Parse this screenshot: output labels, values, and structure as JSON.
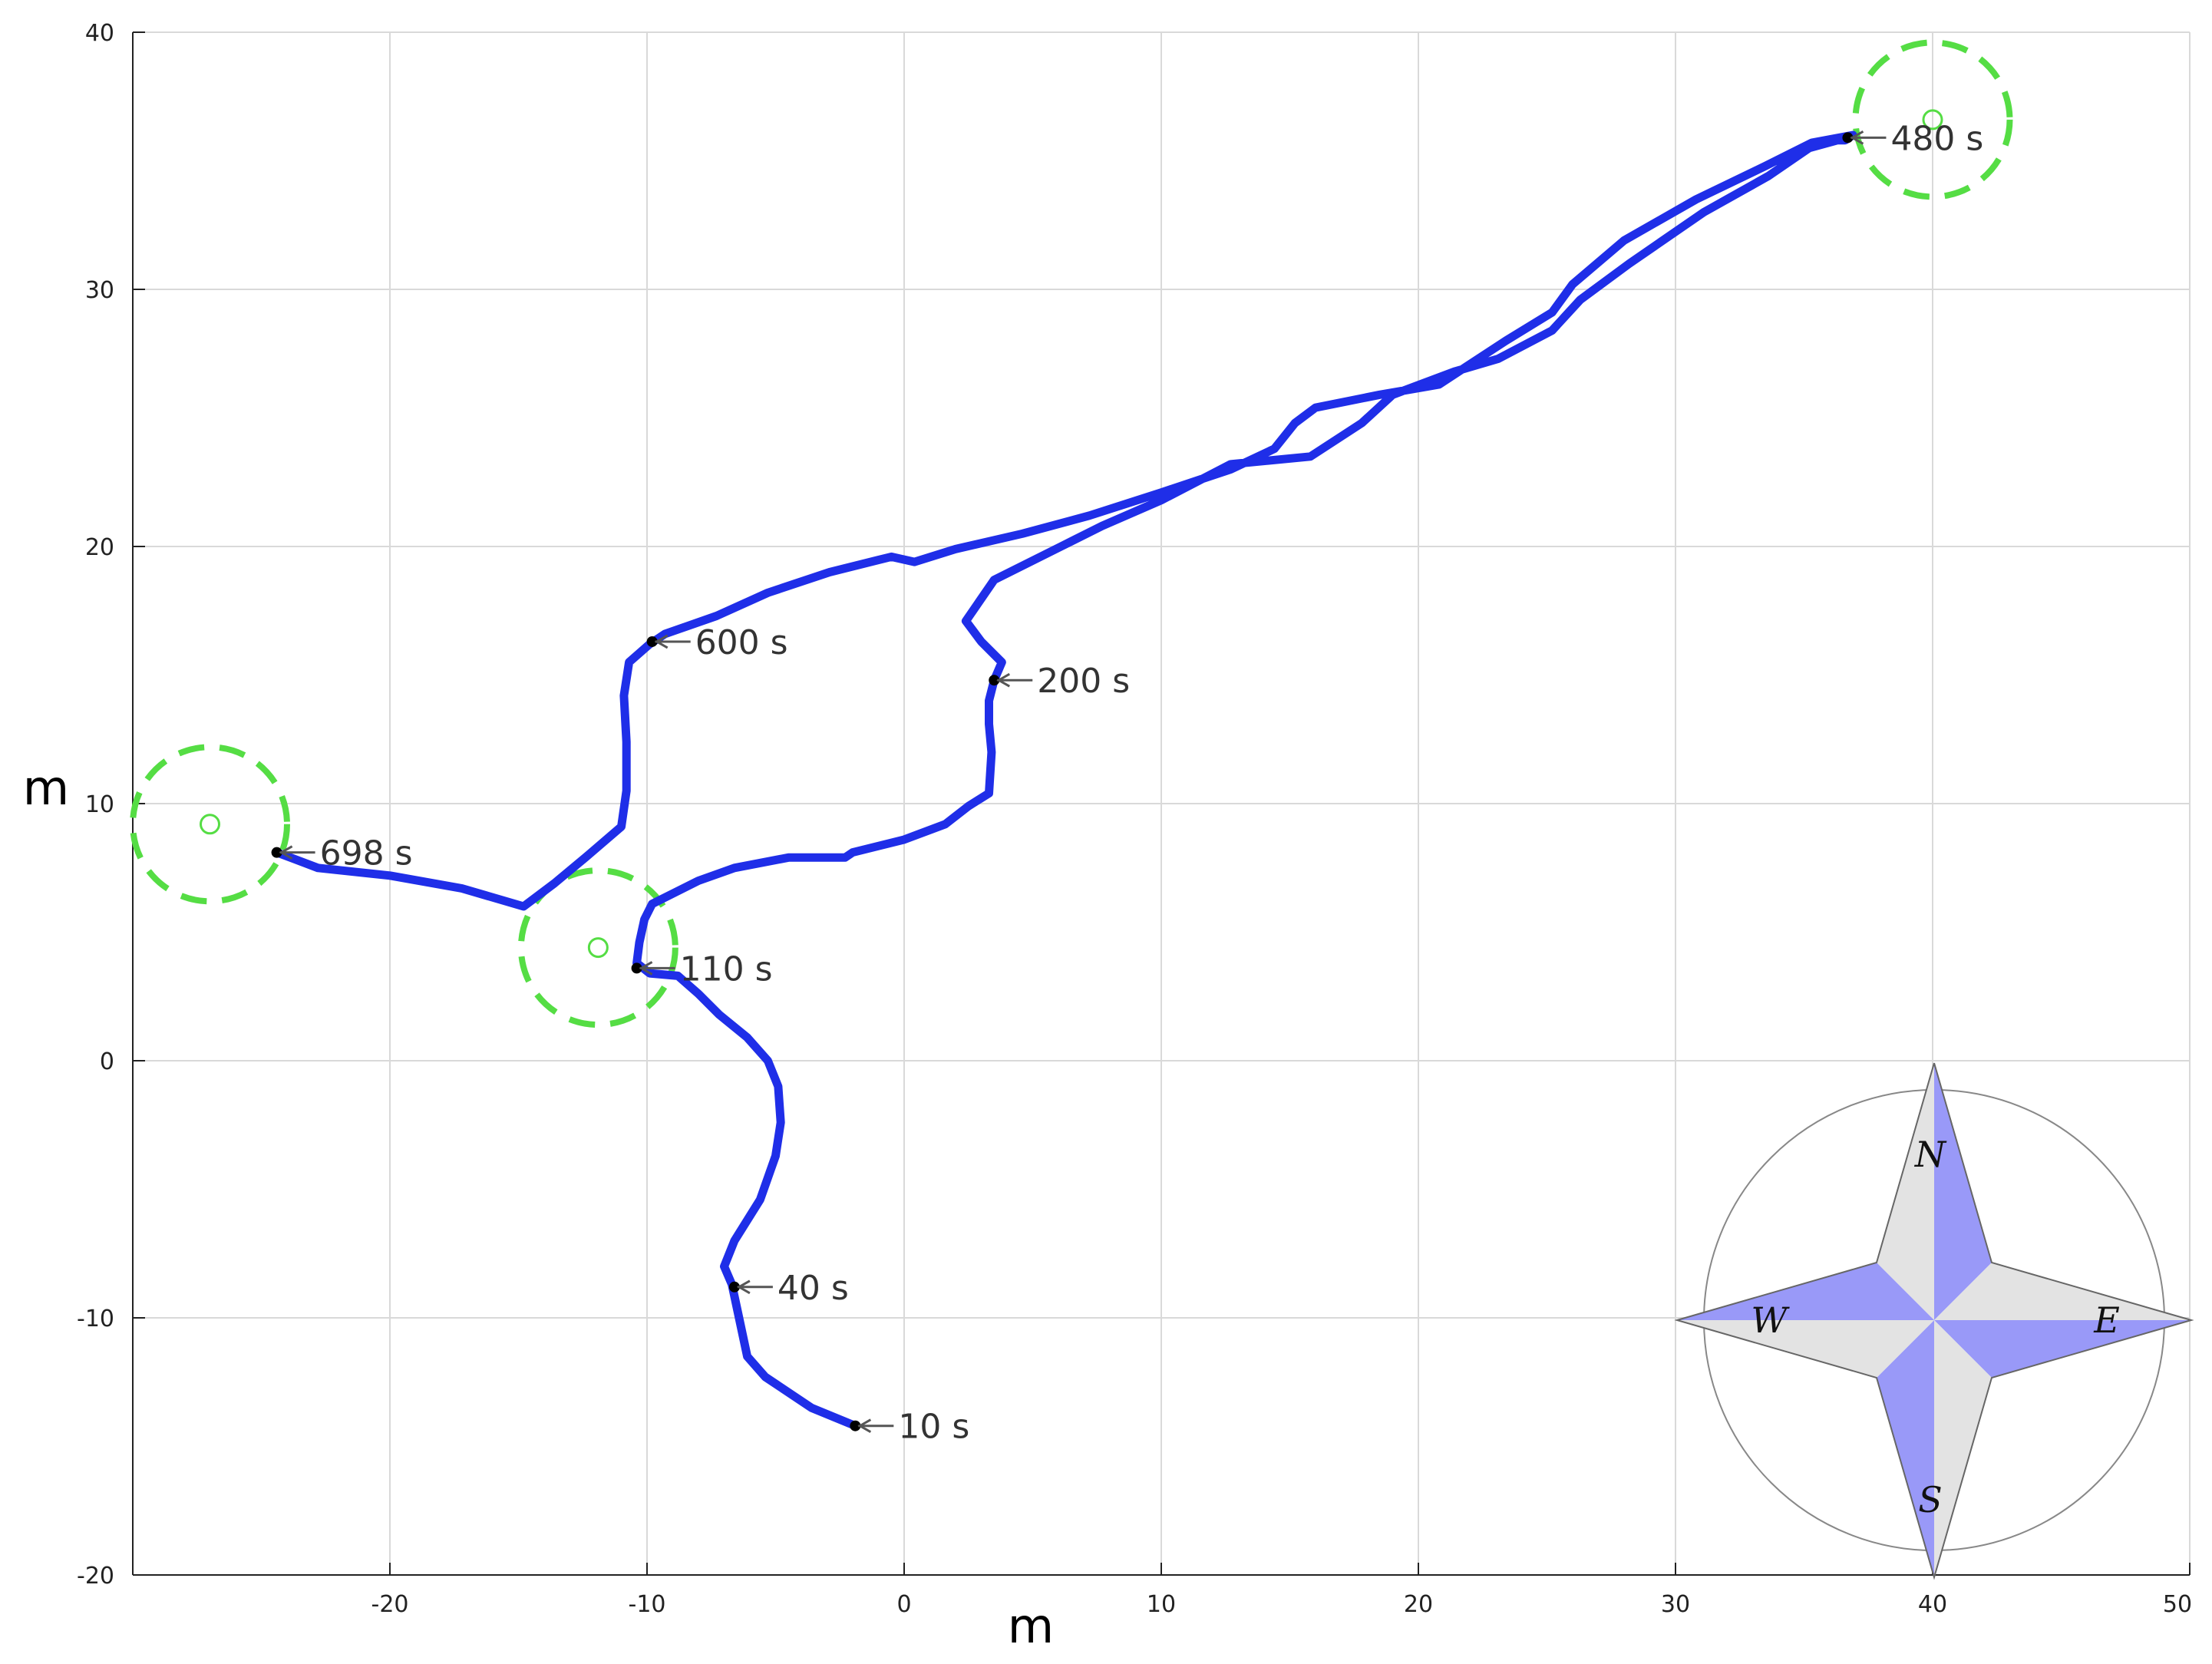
{
  "chart_data": {
    "type": "line",
    "xlabel": "m",
    "ylabel": "m",
    "xlim": [
      -30,
      50
    ],
    "ylim": [
      -20,
      40
    ],
    "xticks": [
      -20,
      -10,
      0,
      10,
      20,
      30,
      40,
      50
    ],
    "yticks": [
      -20,
      -10,
      0,
      10,
      20,
      30,
      40
    ],
    "grid": true,
    "series": [
      {
        "color": "#1f2ee8",
        "x": [
          -1.9,
          -3.6,
          -5.4,
          -6.1,
          -6.4,
          -6.7,
          -7.0,
          -6.6,
          -5.6,
          -5.0,
          -4.8,
          -4.9,
          -5.3,
          -6.1,
          -7.2,
          -8.0,
          -8.8,
          -9.9,
          -10.4,
          -10.3,
          -10.1,
          -9.8,
          -8.0,
          -6.6,
          -4.5,
          -2.3,
          -2.0,
          0.0,
          1.6,
          2.5,
          3.3,
          3.4,
          3.3,
          3.3,
          3.5,
          3.8,
          3.0,
          2.4,
          3.5,
          6.1,
          7.7,
          10.0,
          12.7,
          15.8,
          17.8,
          19.0,
          21.4,
          23.1,
          25.2,
          26.3,
          28.2,
          31.1,
          33.6,
          35.2,
          36.3,
          36.6,
          36.9,
          35.3,
          33.5,
          30.8,
          28.0,
          26.0,
          25.2,
          23.4,
          20.8,
          18.5,
          16.0,
          15.2,
          14.4,
          12.7,
          10.0,
          7.2,
          4.6,
          2.0,
          0.4,
          -0.5,
          -2.9,
          -5.3,
          -7.3,
          -9.3,
          -9.9,
          -10.7,
          -10.9,
          -10.8,
          -10.8,
          -11.0,
          -12.4,
          -13.6,
          -14.8,
          -17.2,
          -20.0,
          -22.8,
          -24.4
        ],
        "y": [
          -14.2,
          -13.5,
          -12.3,
          -11.5,
          -10.1,
          -8.7,
          -8.0,
          -7.0,
          -5.4,
          -3.7,
          -2.4,
          -1.0,
          0.0,
          0.9,
          1.8,
          2.6,
          3.3,
          3.4,
          3.8,
          4.6,
          5.5,
          6.1,
          7.0,
          7.5,
          7.9,
          7.9,
          8.1,
          8.6,
          9.2,
          9.9,
          10.4,
          12.0,
          13.1,
          14.0,
          14.8,
          15.5,
          16.3,
          17.1,
          18.7,
          20.0,
          20.8,
          21.8,
          23.2,
          23.5,
          24.8,
          25.9,
          26.8,
          27.3,
          28.4,
          29.6,
          31.0,
          33.0,
          34.4,
          35.5,
          35.8,
          35.8,
          36.0,
          35.7,
          34.8,
          33.5,
          31.9,
          30.2,
          29.1,
          28.0,
          26.3,
          25.9,
          25.4,
          24.8,
          23.8,
          23.0,
          22.1,
          21.2,
          20.5,
          19.9,
          19.4,
          19.6,
          19.0,
          18.2,
          17.3,
          16.6,
          16.2,
          15.5,
          14.2,
          12.4,
          10.5,
          9.1,
          7.9,
          6.9,
          6.0,
          6.7,
          7.2,
          7.5,
          8.1
        ]
      }
    ],
    "annotations": [
      {
        "label": "10 s",
        "x": -1.9,
        "y": -14.2
      },
      {
        "label": "40 s",
        "x": -6.6,
        "y": -8.8
      },
      {
        "label": "110 s",
        "x": -10.4,
        "y": 3.6
      },
      {
        "label": "200 s",
        "x": 3.5,
        "y": 14.8
      },
      {
        "label": "480 s",
        "x": 36.7,
        "y": 35.9
      },
      {
        "label": "600 s",
        "x": -9.8,
        "y": 16.3
      },
      {
        "label": "698 s",
        "x": -24.4,
        "y": 8.1
      }
    ],
    "targets": [
      {
        "x": -27.0,
        "y": 9.2,
        "radius": 3.0
      },
      {
        "x": -11.9,
        "y": 4.4,
        "radius": 3.0
      },
      {
        "x": 40.0,
        "y": 36.6,
        "radius": 3.0
      }
    ],
    "target_color": "#55dd44"
  },
  "compass": {
    "north": "N",
    "east": "E",
    "south": "S",
    "west": "W",
    "accent_color": "#9999f8",
    "light_color": "#e3e3e3"
  }
}
